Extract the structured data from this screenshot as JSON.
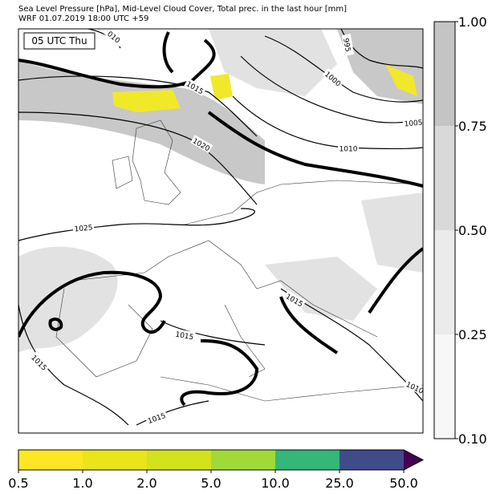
{
  "header": {
    "title": "Sea Level Pressure [hPa], Mid-Level Cloud Cover, Total prec. in the last hour [mm]",
    "subtitle": "WRF 01.07.2019 18:00 UTC +59"
  },
  "map": {
    "time_label": "05 UTC Thu",
    "isobar_labels": [
      "010",
      "995",
      "1000",
      "1005",
      "1010",
      "1015",
      "1020",
      "1025",
      "1015",
      "1015",
      "1015",
      "1015",
      "1010"
    ]
  },
  "cloud_colorbar": {
    "colors": [
      "#f7f7f7",
      "#ebebeb",
      "#d9d9d9",
      "#c4c4c4"
    ],
    "ticks": [
      "0.10",
      "0.25",
      "0.50",
      "0.75",
      "1.00"
    ]
  },
  "precip_colorbar": {
    "colors": [
      "#fde725",
      "#eae51a",
      "#d2e21b",
      "#a0da39",
      "#35b779",
      "#3e4c8a"
    ],
    "extend_color": "#440154",
    "ticks": [
      "0.5",
      "1.0",
      "2.0",
      "5.0",
      "10.0",
      "25.0",
      "50.0"
    ]
  }
}
